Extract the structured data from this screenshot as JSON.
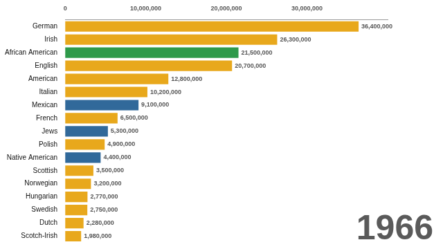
{
  "chart_data": {
    "type": "bar",
    "orientation": "horizontal",
    "annotation": "1966",
    "categories": [
      "German",
      "Irish",
      "African American",
      "English",
      "American",
      "Italian",
      "Mexican",
      "French",
      "Jews",
      "Polish",
      "Native American",
      "Scottish",
      "Norwegian",
      "Hungarian",
      "Swedish",
      "Dutch",
      "Scotch-Irish"
    ],
    "values": [
      36400000,
      26300000,
      21500000,
      20700000,
      12800000,
      10200000,
      9100000,
      6500000,
      5300000,
      4900000,
      4400000,
      3500000,
      3200000,
      2770000,
      2750000,
      2280000,
      1980000
    ],
    "value_labels": [
      "36,400,000",
      "26,300,000",
      "21,500,000",
      "20,700,000",
      "12,800,000",
      "10,200,000",
      "9,100,000",
      "6,500,000",
      "5,300,000",
      "4,900,000",
      "4,400,000",
      "3,500,000",
      "3,200,000",
      "2,770,000",
      "2,750,000",
      "2,280,000",
      "1,980,000"
    ],
    "data_labels": true,
    "colors": [
      "#e8a81c",
      "#e8a81c",
      "#2e9a4a",
      "#e8a81c",
      "#e8a81c",
      "#e8a81c",
      "#31699a",
      "#e8a81c",
      "#31699a",
      "#e8a81c",
      "#31699a",
      "#e8a81c",
      "#e8a81c",
      "#e8a81c",
      "#e8a81c",
      "#e8a81c",
      "#e8a81c"
    ],
    "xlim": [
      0,
      40000000
    ],
    "xticks": [
      0,
      {
        "value": 10000000,
        "label": "10,000,000"
      },
      {
        "value": 20000000,
        "label": "20,000,000"
      },
      {
        "value": 30000000,
        "label": "30,000,000"
      }
    ],
    "grid": false
  }
}
